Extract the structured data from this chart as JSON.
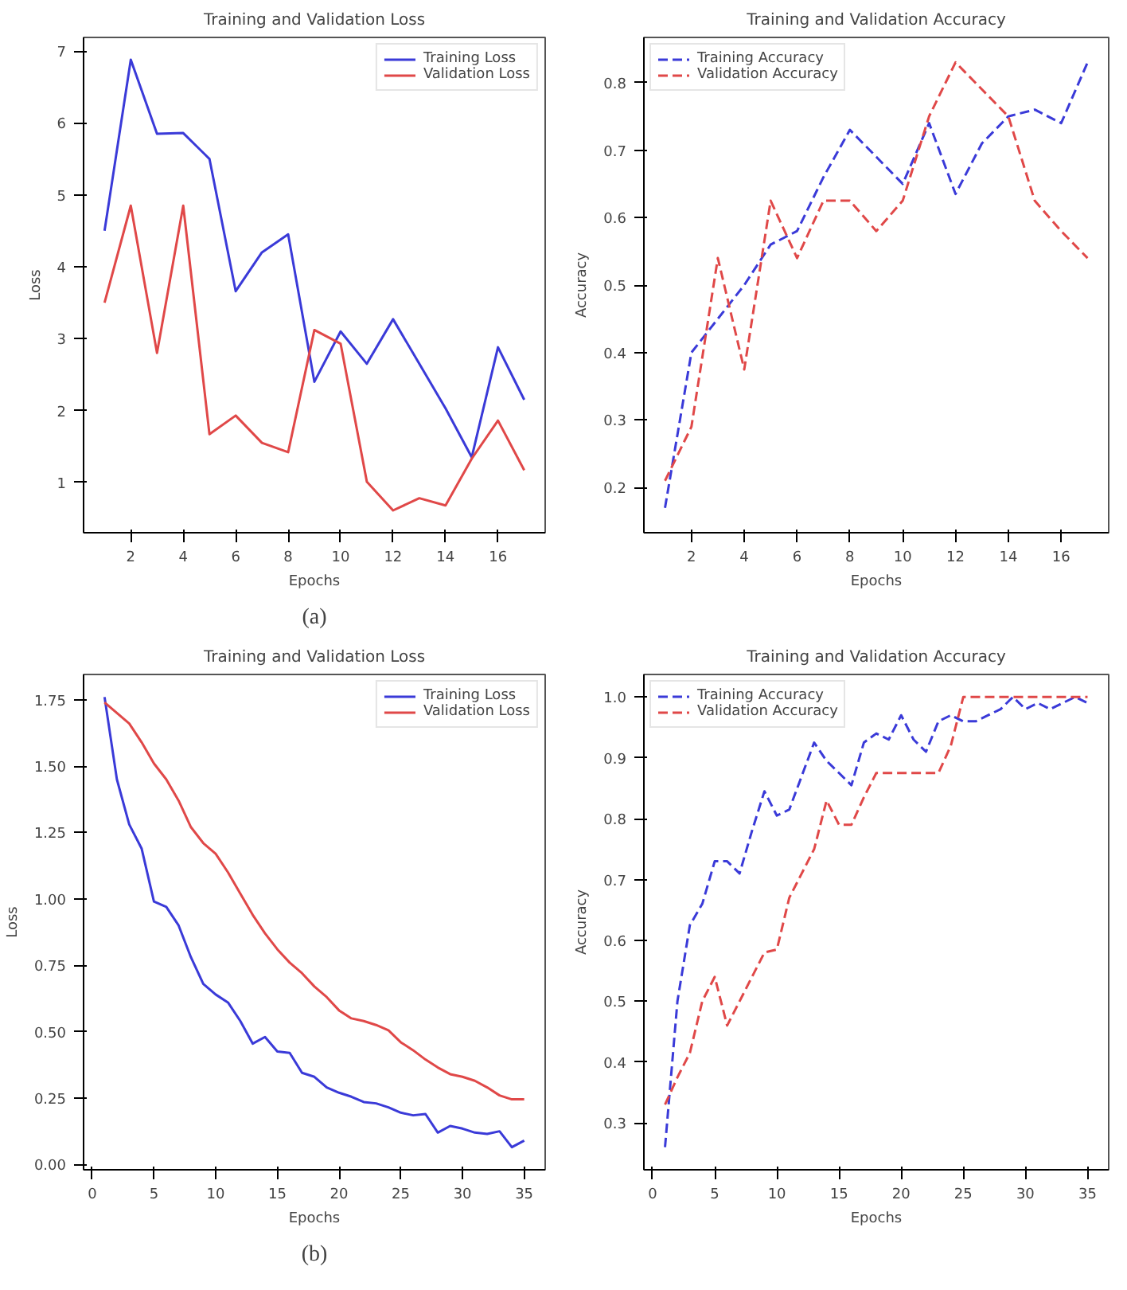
{
  "chart_data": [
    {
      "type": "line",
      "title": "Training and Validation Loss",
      "xlabel": "Epochs",
      "ylabel": "Loss",
      "x": [
        1,
        2,
        3,
        4,
        5,
        6,
        7,
        8,
        9,
        10,
        11,
        12,
        13,
        14,
        15,
        16,
        17
      ],
      "xlim": [
        0.2,
        17.8
      ],
      "xticks": [
        2,
        4,
        6,
        8,
        10,
        12,
        14,
        16
      ],
      "ylim": [
        0.3,
        7.19
      ],
      "yticks": [
        1,
        2,
        3,
        4,
        5,
        6,
        7
      ],
      "grid": false,
      "legend": "top right",
      "line_style": "solid",
      "annotations": [
        "(a)"
      ],
      "series": [
        {
          "name": "Training Loss",
          "color": "#3a3ad8",
          "values": [
            4.5,
            6.88,
            5.85,
            5.86,
            5.5,
            3.66,
            4.2,
            4.45,
            2.4,
            3.1,
            2.65,
            3.27,
            2.65,
            2.03,
            1.35,
            2.88,
            2.15
          ]
        },
        {
          "name": "Validation Loss",
          "color": "#e04848",
          "values": [
            3.5,
            4.85,
            2.8,
            4.85,
            1.67,
            1.93,
            1.55,
            1.42,
            3.12,
            2.93,
            1.01,
            0.61,
            0.78,
            0.68,
            1.33,
            1.86,
            1.17
          ]
        }
      ]
    },
    {
      "type": "line",
      "title": "Training and Validation Accuracy",
      "xlabel": "Epochs",
      "ylabel": "Accuracy",
      "x": [
        1,
        2,
        3,
        4,
        5,
        6,
        7,
        8,
        9,
        10,
        11,
        12,
        13,
        14,
        15,
        16,
        17
      ],
      "xlim": [
        0.2,
        17.8
      ],
      "xticks": [
        2,
        4,
        6,
        8,
        10,
        12,
        14,
        16
      ],
      "ylim": [
        0.133,
        0.867
      ],
      "yticks": [
        0.2,
        0.3,
        0.4,
        0.5,
        0.6,
        0.7,
        0.8
      ],
      "grid": false,
      "legend": "top left",
      "line_style": "dashed",
      "series": [
        {
          "name": "Training Accuracy",
          "color": "#3a3ad8",
          "values": [
            0.17,
            0.4,
            0.45,
            0.5,
            0.56,
            0.58,
            0.66,
            0.73,
            0.69,
            0.65,
            0.74,
            0.635,
            0.71,
            0.75,
            0.76,
            0.74,
            0.83
          ]
        },
        {
          "name": "Validation Accuracy",
          "color": "#e04848",
          "values": [
            0.21,
            0.29,
            0.54,
            0.375,
            0.625,
            0.54,
            0.625,
            0.625,
            0.58,
            0.625,
            0.75,
            0.83,
            0.79,
            0.75,
            0.625,
            0.58,
            0.54
          ]
        }
      ]
    },
    {
      "type": "line",
      "title": "Training and Validation Loss",
      "xlabel": "Epochs",
      "ylabel": "Loss",
      "x": [
        1,
        2,
        3,
        4,
        5,
        6,
        7,
        8,
        9,
        10,
        11,
        12,
        13,
        14,
        15,
        16,
        17,
        18,
        19,
        20,
        21,
        22,
        23,
        24,
        25,
        26,
        27,
        28,
        29,
        30,
        31,
        32,
        33,
        34,
        35
      ],
      "xlim": [
        -0.7,
        36.7
      ],
      "xticks": [
        0,
        5,
        10,
        15,
        20,
        25,
        30,
        35
      ],
      "ylim": [
        -0.02,
        1.845
      ],
      "yticks": [
        {
          "value": 0,
          "label": "0.00"
        },
        0.25,
        {
          "value": 0.5,
          "label": "0.50"
        },
        0.75,
        {
          "value": 1,
          "label": "1.00"
        },
        1.25,
        {
          "value": 1.5,
          "label": "1.50"
        },
        1.75
      ],
      "grid": false,
      "legend": "top right",
      "line_style": "solid",
      "annotations": [
        "(b)"
      ],
      "series": [
        {
          "name": "Training Loss",
          "color": "#3a3ad8",
          "values": [
            1.76,
            1.45,
            1.28,
            1.19,
            0.99,
            0.97,
            0.9,
            0.78,
            0.68,
            0.64,
            0.61,
            0.54,
            0.455,
            0.48,
            0.425,
            0.42,
            0.345,
            0.33,
            0.29,
            0.27,
            0.255,
            0.235,
            0.23,
            0.215,
            0.195,
            0.185,
            0.19,
            0.12,
            0.145,
            0.135,
            0.12,
            0.115,
            0.125,
            0.065,
            0.09
          ]
        },
        {
          "name": "Validation Loss",
          "color": "#e04848",
          "values": [
            1.74,
            1.7,
            1.66,
            1.59,
            1.51,
            1.45,
            1.37,
            1.27,
            1.21,
            1.17,
            1.1,
            1.02,
            0.94,
            0.87,
            0.81,
            0.76,
            0.72,
            0.67,
            0.63,
            0.58,
            0.55,
            0.54,
            0.525,
            0.505,
            0.46,
            0.43,
            0.395,
            0.365,
            0.34,
            0.33,
            0.315,
            0.29,
            0.26,
            0.245,
            0.245
          ]
        }
      ]
    },
    {
      "type": "line",
      "title": "Training and Validation Accuracy",
      "xlabel": "Epochs",
      "ylabel": "Accuracy",
      "x": [
        1,
        2,
        3,
        4,
        5,
        6,
        7,
        8,
        9,
        10,
        11,
        12,
        13,
        14,
        15,
        16,
        17,
        18,
        19,
        20,
        21,
        22,
        23,
        24,
        25,
        26,
        27,
        28,
        29,
        30,
        31,
        32,
        33,
        34,
        35
      ],
      "xlim": [
        -0.7,
        36.7
      ],
      "xticks": [
        0,
        5,
        10,
        15,
        20,
        25,
        30,
        35
      ],
      "ylim": [
        0.223,
        1.037
      ],
      "yticks": [
        0.3,
        0.4,
        0.5,
        0.6,
        0.7,
        0.8,
        0.9,
        {
          "value": 1,
          "label": "1.0"
        }
      ],
      "grid": false,
      "legend": "top left",
      "line_style": "dashed",
      "series": [
        {
          "name": "Training Accuracy",
          "color": "#3a3ad8",
          "values": [
            0.26,
            0.5,
            0.625,
            0.66,
            0.73,
            0.73,
            0.71,
            0.78,
            0.845,
            0.805,
            0.815,
            0.87,
            0.925,
            0.895,
            0.875,
            0.855,
            0.925,
            0.94,
            0.93,
            0.97,
            0.93,
            0.91,
            0.96,
            0.97,
            0.96,
            0.96,
            0.97,
            0.98,
            1.0,
            0.98,
            0.99,
            0.98,
            0.99,
            1.0,
            0.99
          ]
        },
        {
          "name": "Validation Accuracy",
          "color": "#e04848",
          "values": [
            0.33,
            0.375,
            0.415,
            0.5,
            0.54,
            0.46,
            0.5,
            0.54,
            0.58,
            0.585,
            0.67,
            0.71,
            0.75,
            0.83,
            0.79,
            0.79,
            0.835,
            0.875,
            0.875,
            0.875,
            0.875,
            0.875,
            0.875,
            0.92,
            1.0,
            1.0,
            1.0,
            1.0,
            1.0,
            1.0,
            1.0,
            1.0,
            1.0,
            1.0,
            1.0
          ]
        }
      ]
    }
  ]
}
